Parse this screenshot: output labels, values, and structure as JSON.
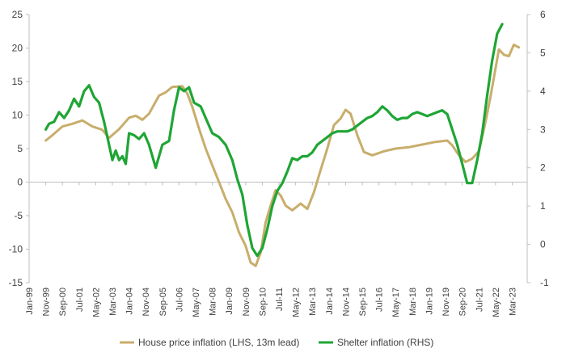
{
  "chart_data": {
    "type": "line",
    "title": "",
    "xlabel": "",
    "ylabel_left": "",
    "ylabel_right": "",
    "x_tick_labels": [
      "Jan-99",
      "Nov-99",
      "Sep-00",
      "Jul-01",
      "May-02",
      "Mar-03",
      "Jan-04",
      "Nov-04",
      "Sep-05",
      "Jul-06",
      "May-07",
      "Mar-08",
      "Jan-09",
      "Nov-09",
      "Sep-10",
      "Jul-11",
      "May-12",
      "Mar-13",
      "Jan-14",
      "Nov-14",
      "Sep-15",
      "Jul-16",
      "May-17",
      "Mar-18",
      "Jan-19",
      "Nov-19",
      "Sep-20",
      "Jul-21",
      "May-22",
      "Mar-23"
    ],
    "x_range": [
      "1999-01",
      "2023-12"
    ],
    "ylim_left": [
      -15,
      25
    ],
    "yticks_left": [
      -15,
      -10,
      -5,
      0,
      5,
      10,
      15,
      20,
      25
    ],
    "ylim_right": [
      -1,
      6
    ],
    "yticks_right": [
      -1,
      0,
      1,
      2,
      3,
      4,
      5,
      6
    ],
    "legend_position": "bottom",
    "grid": false,
    "series": [
      {
        "name": "House price inflation (LHS, 13m lead)",
        "axis": "left",
        "color": "#C8AE6C",
        "points": [
          [
            "1999-11",
            6.2
          ],
          [
            "2000-03",
            7.0
          ],
          [
            "2000-09",
            8.3
          ],
          [
            "2001-03",
            8.7
          ],
          [
            "2001-09",
            9.2
          ],
          [
            "2002-03",
            8.3
          ],
          [
            "2002-09",
            7.8
          ],
          [
            "2003-01",
            6.6
          ],
          [
            "2003-07",
            7.9
          ],
          [
            "2004-01",
            9.6
          ],
          [
            "2004-05",
            9.9
          ],
          [
            "2004-09",
            9.3
          ],
          [
            "2005-01",
            10.2
          ],
          [
            "2005-07",
            12.9
          ],
          [
            "2005-11",
            13.4
          ],
          [
            "2006-03",
            14.2
          ],
          [
            "2006-09",
            14.3
          ],
          [
            "2006-12",
            13.2
          ],
          [
            "2007-03",
            11.2
          ],
          [
            "2007-07",
            8.0
          ],
          [
            "2007-11",
            5.0
          ],
          [
            "2008-03",
            2.5
          ],
          [
            "2008-07",
            0.0
          ],
          [
            "2008-11",
            -2.5
          ],
          [
            "2009-03",
            -4.5
          ],
          [
            "2009-07",
            -7.5
          ],
          [
            "2009-11",
            -9.5
          ],
          [
            "2010-02",
            -12.0
          ],
          [
            "2010-05",
            -12.5
          ],
          [
            "2010-08",
            -10.5
          ],
          [
            "2010-11",
            -6.0
          ],
          [
            "2011-02",
            -3.5
          ],
          [
            "2011-05",
            -1.2
          ],
          [
            "2011-08",
            -2.0
          ],
          [
            "2011-11",
            -3.5
          ],
          [
            "2012-03",
            -4.2
          ],
          [
            "2012-08",
            -3.2
          ],
          [
            "2012-12",
            -4.0
          ],
          [
            "2013-04",
            -1.5
          ],
          [
            "2013-08",
            1.8
          ],
          [
            "2013-12",
            5.0
          ],
          [
            "2014-04",
            8.5
          ],
          [
            "2014-08",
            9.5
          ],
          [
            "2014-11",
            10.8
          ],
          [
            "2015-02",
            10.2
          ],
          [
            "2015-06",
            7.0
          ],
          [
            "2015-10",
            4.5
          ],
          [
            "2016-03",
            4.0
          ],
          [
            "2016-10",
            4.6
          ],
          [
            "2017-05",
            5.0
          ],
          [
            "2018-01",
            5.2
          ],
          [
            "2018-09",
            5.6
          ],
          [
            "2019-05",
            6.0
          ],
          [
            "2019-12",
            6.2
          ],
          [
            "2020-03",
            5.5
          ],
          [
            "2020-07",
            4.0
          ],
          [
            "2020-11",
            3.0
          ],
          [
            "2021-03",
            3.5
          ],
          [
            "2021-07",
            4.6
          ],
          [
            "2021-11",
            9.0
          ],
          [
            "2022-02",
            12.8
          ],
          [
            "2022-05",
            17.0
          ],
          [
            "2022-07",
            19.8
          ],
          [
            "2022-10",
            19.0
          ],
          [
            "2023-01",
            18.8
          ],
          [
            "2023-04",
            20.5
          ],
          [
            "2023-07",
            20.1
          ]
        ]
      },
      {
        "name": "Shelter inflation (RHS)",
        "axis": "right",
        "color": "#1FA535",
        "points": [
          [
            "1999-11",
            3.0
          ],
          [
            "2000-01",
            3.15
          ],
          [
            "2000-04",
            3.2
          ],
          [
            "2000-07",
            3.45
          ],
          [
            "2000-10",
            3.3
          ],
          [
            "2001-01",
            3.5
          ],
          [
            "2001-04",
            3.8
          ],
          [
            "2001-07",
            3.6
          ],
          [
            "2001-10",
            4.0
          ],
          [
            "2002-01",
            4.15
          ],
          [
            "2002-04",
            3.85
          ],
          [
            "2002-07",
            3.7
          ],
          [
            "2002-10",
            3.2
          ],
          [
            "2003-01",
            2.6
          ],
          [
            "2003-03",
            2.2
          ],
          [
            "2003-05",
            2.45
          ],
          [
            "2003-07",
            2.2
          ],
          [
            "2003-09",
            2.3
          ],
          [
            "2003-11",
            2.1
          ],
          [
            "2004-01",
            2.9
          ],
          [
            "2004-04",
            2.85
          ],
          [
            "2004-07",
            2.75
          ],
          [
            "2004-10",
            2.9
          ],
          [
            "2005-01",
            2.6
          ],
          [
            "2005-05",
            2.0
          ],
          [
            "2005-09",
            2.6
          ],
          [
            "2006-01",
            2.7
          ],
          [
            "2006-04",
            3.5
          ],
          [
            "2006-07",
            4.1
          ],
          [
            "2006-10",
            4.0
          ],
          [
            "2007-01",
            4.1
          ],
          [
            "2007-04",
            3.7
          ],
          [
            "2007-08",
            3.6
          ],
          [
            "2007-12",
            3.2
          ],
          [
            "2008-03",
            2.9
          ],
          [
            "2008-07",
            2.8
          ],
          [
            "2008-11",
            2.6
          ],
          [
            "2009-03",
            2.2
          ],
          [
            "2009-06",
            1.7
          ],
          [
            "2009-09",
            1.3
          ],
          [
            "2009-12",
            0.5
          ],
          [
            "2010-03",
            -0.1
          ],
          [
            "2010-06",
            -0.3
          ],
          [
            "2010-09",
            -0.1
          ],
          [
            "2010-12",
            0.4
          ],
          [
            "2011-03",
            1.0
          ],
          [
            "2011-06",
            1.4
          ],
          [
            "2011-09",
            1.6
          ],
          [
            "2011-12",
            1.9
          ],
          [
            "2012-03",
            2.25
          ],
          [
            "2012-06",
            2.2
          ],
          [
            "2012-09",
            2.3
          ],
          [
            "2012-12",
            2.3
          ],
          [
            "2013-03",
            2.4
          ],
          [
            "2013-06",
            2.6
          ],
          [
            "2013-09",
            2.7
          ],
          [
            "2013-12",
            2.8
          ],
          [
            "2014-03",
            2.9
          ],
          [
            "2014-06",
            2.95
          ],
          [
            "2014-09",
            2.95
          ],
          [
            "2014-12",
            2.95
          ],
          [
            "2015-03",
            3.0
          ],
          [
            "2015-06",
            3.1
          ],
          [
            "2015-09",
            3.2
          ],
          [
            "2015-12",
            3.3
          ],
          [
            "2016-03",
            3.35
          ],
          [
            "2016-06",
            3.45
          ],
          [
            "2016-09",
            3.6
          ],
          [
            "2016-12",
            3.5
          ],
          [
            "2017-03",
            3.35
          ],
          [
            "2017-06",
            3.25
          ],
          [
            "2017-09",
            3.3
          ],
          [
            "2017-12",
            3.3
          ],
          [
            "2018-03",
            3.4
          ],
          [
            "2018-06",
            3.45
          ],
          [
            "2018-09",
            3.4
          ],
          [
            "2018-12",
            3.35
          ],
          [
            "2019-03",
            3.4
          ],
          [
            "2019-06",
            3.45
          ],
          [
            "2019-09",
            3.5
          ],
          [
            "2019-12",
            3.4
          ],
          [
            "2020-03",
            3.0
          ],
          [
            "2020-06",
            2.6
          ],
          [
            "2020-09",
            2.1
          ],
          [
            "2020-12",
            1.6
          ],
          [
            "2021-03",
            1.6
          ],
          [
            "2021-06",
            2.2
          ],
          [
            "2021-09",
            2.9
          ],
          [
            "2021-12",
            3.9
          ],
          [
            "2022-03",
            4.8
          ],
          [
            "2022-06",
            5.5
          ],
          [
            "2022-09",
            5.75
          ]
        ]
      }
    ]
  }
}
